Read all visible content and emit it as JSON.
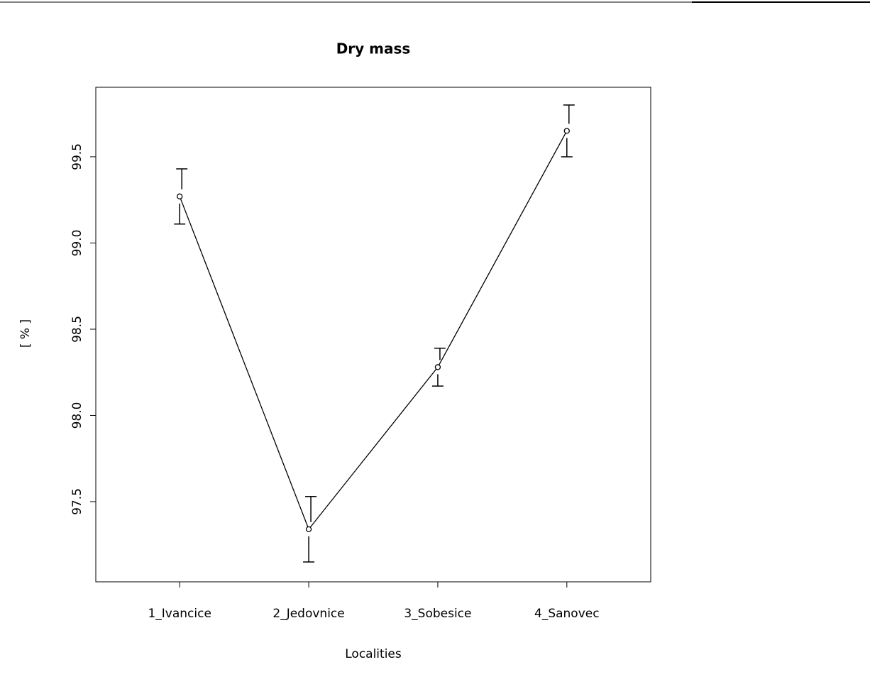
{
  "chart_data": {
    "type": "line",
    "title": "Dry mass",
    "x_label": "Localities",
    "y_label": "[ % ]",
    "categories": [
      "1_Ivancice",
      "2_Jedovnice",
      "3_Sobesice",
      "4_Sanovec"
    ],
    "values": [
      99.27,
      97.34,
      98.28,
      99.65
    ],
    "errors": [
      0.16,
      0.19,
      0.11,
      0.15
    ],
    "color": "#000000",
    "ylim": [
      97.035,
      99.903
    ],
    "yticks": [
      97.5,
      {
        "value": 98,
        "label": "98.0"
      },
      98.5,
      {
        "value": 99,
        "label": "99.0"
      },
      99.5
    ]
  }
}
